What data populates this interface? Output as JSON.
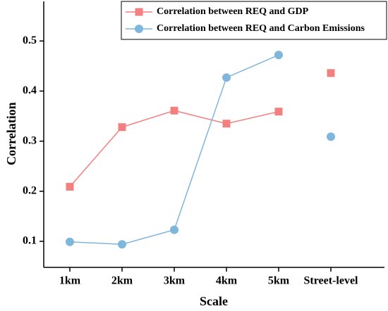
{
  "chart_data": {
    "type": "line",
    "x_label": "Scale",
    "y_label": "Correlation",
    "categories": [
      "1km",
      "2km",
      "3km",
      "4km",
      "5km",
      "Street-level"
    ],
    "line_ends_at": "5km",
    "series": [
      {
        "name": "Correlation between REQ and GDP",
        "color": "#f47f7f",
        "marker": "square",
        "values": [
          0.209,
          0.328,
          0.361,
          0.335,
          0.359,
          0.436
        ]
      },
      {
        "name": "Correlation between REQ and Carbon Emissions",
        "color": "#7fb6db",
        "marker": "circle",
        "values": [
          0.099,
          0.094,
          0.123,
          0.427,
          0.472,
          0.309
        ]
      }
    ],
    "ylim": [
      0.048,
      0.579
    ],
    "yticks": [
      0.1,
      0.2,
      0.3,
      0.4,
      0.5
    ],
    "legend": "upper right"
  }
}
